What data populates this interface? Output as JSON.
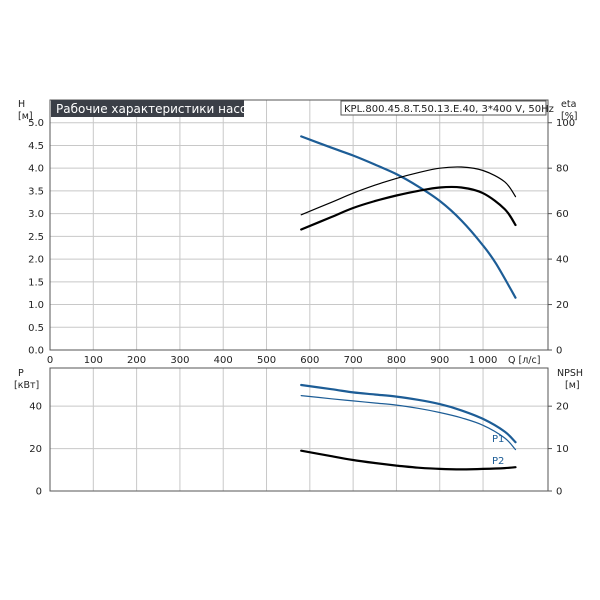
{
  "chart_title": "Рабочие характеристики насоса",
  "model_label": "KPL.800.45.8.T.50.13.E.40, 3*400 V, 50Hz",
  "colors": {
    "blue": "#1d5d96",
    "black": "#000000",
    "title_bg": "#3b3f47"
  },
  "chart_data": [
    {
      "type": "line",
      "panel": "top",
      "x_axis": {
        "label": "Q [л/с]",
        "ticks": [
          "0",
          "100",
          "200",
          "300",
          "400",
          "500",
          "600",
          "700",
          "800",
          "900",
          "1 000"
        ],
        "xlim": [
          0,
          1150
        ]
      },
      "y_left": {
        "label_line1": "H",
        "label_line2": "[м]",
        "ticks": [
          "0.0",
          "0.5",
          "1.0",
          "1.5",
          "2.0",
          "2.5",
          "3.0",
          "3.5",
          "4.0",
          "4.5",
          "5.0"
        ],
        "ylim": [
          0,
          5.5
        ]
      },
      "y_right": {
        "label_line1": "eta",
        "label_line2": "[%]",
        "ticks": [
          "0",
          "20",
          "40",
          "60",
          "80",
          "100"
        ],
        "ylim": [
          0,
          110
        ]
      },
      "grid": true,
      "series": [
        {
          "name": "",
          "axis": "left",
          "color": "#1d5d96",
          "width": 2.2,
          "x": [
            580,
            650,
            700,
            750,
            800,
            850,
            900,
            950,
            1000,
            1030,
            1075
          ],
          "y": [
            4.7,
            4.45,
            4.28,
            4.08,
            3.87,
            3.6,
            3.28,
            2.85,
            2.3,
            1.9,
            1.15
          ]
        },
        {
          "name": "",
          "axis": "right",
          "color": "#000000",
          "width": 1.2,
          "x": [
            580,
            650,
            700,
            750,
            800,
            850,
            900,
            950,
            1000,
            1050,
            1075
          ],
          "y": [
            59.5,
            65,
            69,
            72.5,
            75.5,
            78,
            80,
            80.5,
            79,
            74,
            67.5
          ]
        },
        {
          "name": "",
          "axis": "right",
          "color": "#000000",
          "width": 2.2,
          "x": [
            580,
            650,
            700,
            750,
            800,
            850,
            900,
            950,
            1000,
            1050,
            1075
          ],
          "y": [
            53,
            58.5,
            62.5,
            65.5,
            68,
            70,
            71.5,
            71.5,
            69,
            62,
            55
          ]
        }
      ]
    },
    {
      "type": "line",
      "panel": "bottom",
      "x_axis": {
        "xlim": [
          0,
          1150
        ]
      },
      "y_left": {
        "label_line1": "P",
        "label_line2": "[кВт]",
        "ticks": [
          "0",
          "20",
          "40"
        ],
        "ylim": [
          0,
          58
        ]
      },
      "y_right": {
        "label_line1": "NPSH",
        "label_line2": "[м]",
        "ticks": [
          "0",
          "10",
          "20"
        ],
        "ylim": [
          0,
          29
        ]
      },
      "grid": true,
      "series": [
        {
          "name": "P1",
          "axis": "left",
          "color": "#1d5d96",
          "width": 2.2,
          "x": [
            580,
            650,
            700,
            750,
            800,
            850,
            900,
            950,
            1000,
            1050,
            1075
          ],
          "y": [
            50,
            48,
            46.5,
            45.5,
            44.5,
            43,
            41,
            38,
            34,
            28,
            23
          ]
        },
        {
          "name": "P2",
          "axis": "left",
          "color": "#1d5d96",
          "width": 1.2,
          "x": [
            580,
            650,
            700,
            750,
            800,
            850,
            900,
            950,
            1000,
            1050,
            1075
          ],
          "y": [
            45,
            43.5,
            42.5,
            41.5,
            40.5,
            39,
            37,
            34.5,
            31,
            25,
            19.5
          ]
        },
        {
          "name": "",
          "axis": "right",
          "color": "#000000",
          "width": 2.2,
          "x": [
            580,
            650,
            700,
            750,
            800,
            850,
            900,
            950,
            1000,
            1050,
            1075
          ],
          "y": [
            9.5,
            8.2,
            7.3,
            6.6,
            6,
            5.5,
            5.2,
            5.1,
            5.2,
            5.4,
            5.6
          ]
        }
      ]
    }
  ]
}
